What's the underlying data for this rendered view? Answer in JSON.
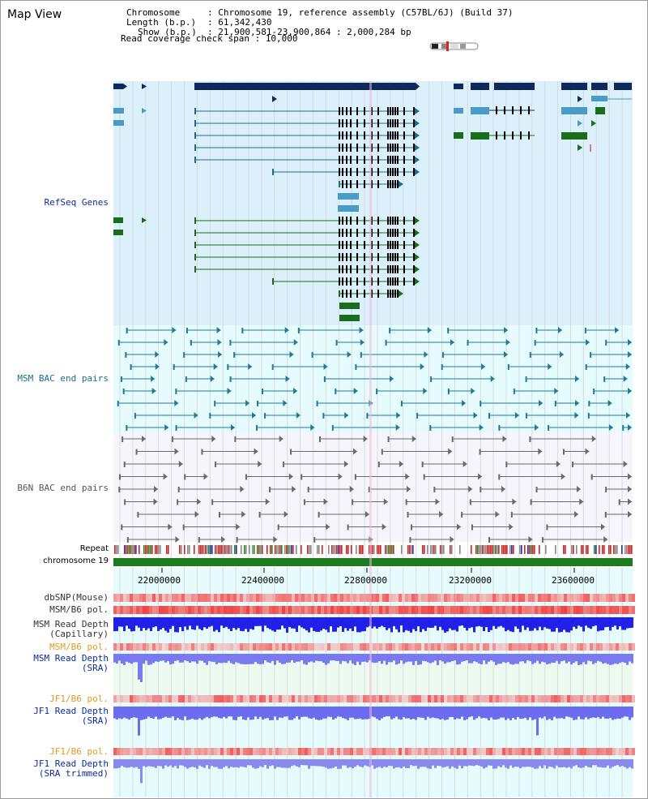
{
  "page": {
    "title": "Map View"
  },
  "info": {
    "chromosome_key": "Chromosome",
    "chromosome_value": ": Chromosome 19, reference assembly (C57BL/6J) (Build 37)",
    "length_key": "Length (b.p.)",
    "length_value": ": 61,342,430",
    "show_key": "Show (b.p.)",
    "show_value": ": 21,900,581-23,900,864 : 2,000,284 bp",
    "coverage": "Read coverage check span : 10,000"
  },
  "tracks": {
    "refseq": "RefSeq Genes",
    "msm_bac": "MSM BAC end pairs",
    "b6n_bac": "B6N BAC end pairs",
    "repeat": "Repeat",
    "chromosome": "chromosome 19",
    "dbsnp": "dbSNP(Mouse)",
    "msm_b6_pol": "MSM/B6 pol.",
    "msm_read_cap_1": "MSM Read Depth",
    "msm_read_cap_2": "(Capillary)",
    "msm_b6_pol_2": "MSM/B6 pol.",
    "msm_read_sra_1": "MSM Read Depth",
    "msm_read_sra_2": "(SRA)",
    "jf1_b6_pol": "JF1/B6 pol.",
    "jf1_read_sra_1": "JF1 Read Depth",
    "jf1_read_sra_2": "(SRA)",
    "jf1_b6_pol_2": "JF1/B6 pol.",
    "jf1_read_trim_1": "JF1 Read Depth",
    "jf1_read_trim_2": "(SRA trimmed)"
  },
  "axis": {
    "ticks": [
      "22000000",
      "22400000",
      "22800000",
      "23200000",
      "23600000"
    ]
  },
  "colors": {
    "refseq_bg": "#dcf0fc",
    "msm_bg": "#e6fbfb",
    "gene_dark": "#0e2a5c",
    "gene_light": "#4a9cc6",
    "gene_green": "#1a6e1a",
    "chromosome": "#1d7a1d",
    "depth_blue": "#2020e8",
    "pol_red": "#ef3a3a"
  }
}
